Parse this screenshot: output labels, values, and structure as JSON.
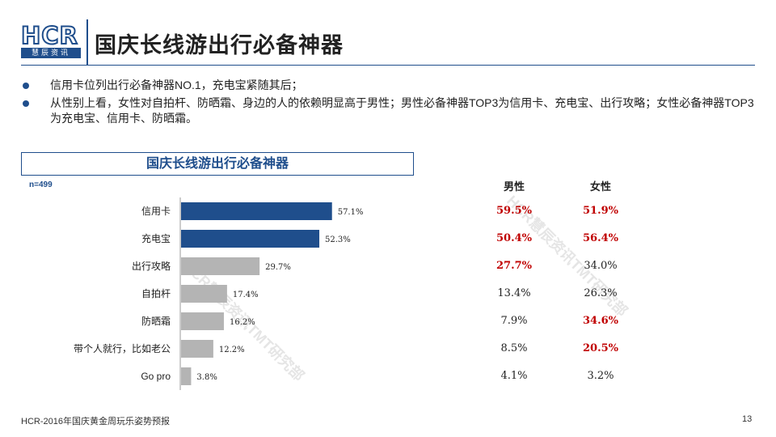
{
  "header": {
    "logo_text": "HCR",
    "logo_sub": "慧辰资讯",
    "title": "国庆长线游出行必备神器",
    "brand_color": "#1f4e8c"
  },
  "bullets": [
    "信用卡位列出行必备神器NO.1，充电宝紧随其后；",
    "从性别上看，女性对自拍杆、防晒霜、身边的人的依赖明显高于男性；男性必备神器TOP3为信用卡、充电宝、出行攻略；女性必备神器TOP3为充电宝、信用卡、防晒霜。"
  ],
  "chart_data": {
    "type": "bar",
    "orientation": "horizontal",
    "title": "国庆长线游出行必备神器",
    "sample_size": "n=499",
    "categories": [
      "信用卡",
      "充电宝",
      "出行攻略",
      "自拍杆",
      "防晒霜",
      "带个人就行，比如老公",
      "Go pro"
    ],
    "values": [
      57.1,
      52.3,
      29.7,
      17.4,
      16.2,
      12.2,
      3.8
    ],
    "value_labels": [
      "57.1%",
      "52.3%",
      "29.7%",
      "17.4%",
      "16.2%",
      "12.2%",
      "3.8%"
    ],
    "unit": "%",
    "xlim": [
      0,
      100
    ],
    "highlight_count": 2,
    "highlight_color": "#1f4e8c",
    "base_color": "#b4b4b4",
    "grid": false,
    "gender_table": {
      "headers": [
        "男性",
        "女性"
      ],
      "male": [
        "59.5%",
        "50.4%",
        "27.7%",
        "13.4%",
        "7.9%",
        "8.5%",
        "4.1%"
      ],
      "female": [
        "51.9%",
        "56.4%",
        "34.0%",
        "26.3%",
        "34.6%",
        "20.5%",
        "3.2%"
      ],
      "male_highlight": [
        true,
        true,
        true,
        false,
        false,
        false,
        false
      ],
      "female_highlight": [
        true,
        true,
        false,
        false,
        true,
        true,
        false
      ],
      "highlight_color": "#c00000"
    }
  },
  "watermark": "HCR慧辰资讯TMT研究部",
  "footer": {
    "text": "HCR-2016年国庆黄金周玩乐姿势预报",
    "page_number": "13"
  }
}
